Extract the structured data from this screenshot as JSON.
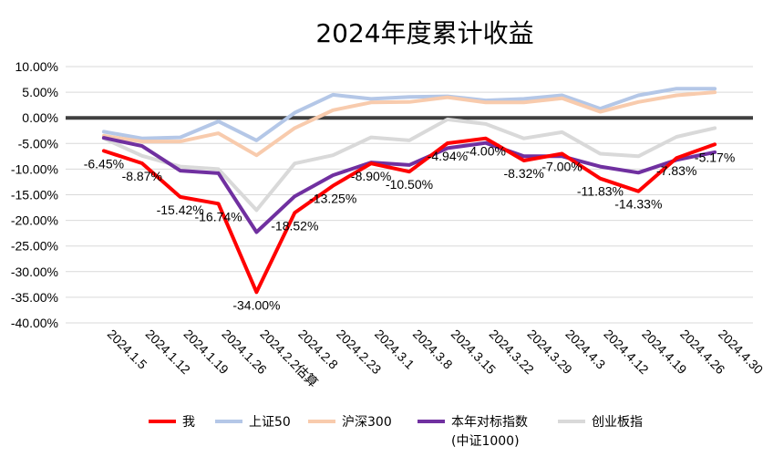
{
  "chart_data": {
    "type": "line",
    "title": "2024年度累计收益",
    "xlabel": "",
    "ylabel": "",
    "ylim": [
      -0.4,
      0.1
    ],
    "ytick_step": 0.05,
    "grid": true,
    "legend_position": "bottom",
    "yticks": [
      "10.00%",
      "5.00%",
      "0.00%",
      "-5.00%",
      "-10.00%",
      "-15.00%",
      "-20.00%",
      "-25.00%",
      "-30.00%",
      "-35.00%",
      "-40.00%"
    ],
    "categories": [
      "2024.1.5",
      "2024.1.12",
      "2024.1.19",
      "2024.1.26",
      "2024.2.2估算",
      "2024.2.8",
      "2024.2.23",
      "2024.3.1",
      "2024.3.8",
      "2024.3.15",
      "2024.3.22",
      "2024.3.29",
      "2024.4.3",
      "2024.4.12",
      "2024.4.19",
      "2024.4.26",
      "2024.4.30"
    ],
    "series": [
      {
        "name": "上证50",
        "color": "#b4c7e7",
        "width": 4,
        "values": [
          -0.027,
          -0.04,
          -0.038,
          -0.007,
          -0.044,
          0.01,
          0.045,
          0.037,
          0.041,
          0.042,
          0.034,
          0.037,
          0.044,
          0.018,
          0.044,
          0.057,
          0.057
        ]
      },
      {
        "name": "沪深300",
        "color": "#f8cbad",
        "width": 4,
        "values": [
          -0.035,
          -0.046,
          -0.046,
          -0.03,
          -0.073,
          -0.02,
          0.015,
          0.03,
          0.031,
          0.04,
          0.03,
          0.03,
          0.038,
          0.012,
          0.031,
          0.044,
          0.05
        ]
      },
      {
        "name": "创业板指",
        "color": "#d9d9d9",
        "width": 4,
        "values": [
          -0.04,
          -0.074,
          -0.095,
          -0.1,
          -0.18,
          -0.089,
          -0.073,
          -0.038,
          -0.044,
          -0.003,
          -0.012,
          -0.04,
          -0.028,
          -0.07,
          -0.075,
          -0.037,
          -0.02
        ]
      },
      {
        "name": "本年对标指数\n(中证1000)",
        "color": "#7030a0",
        "width": 4,
        "values": [
          -0.039,
          -0.055,
          -0.103,
          -0.108,
          -0.223,
          -0.153,
          -0.112,
          -0.087,
          -0.092,
          -0.059,
          -0.049,
          -0.075,
          -0.075,
          -0.095,
          -0.107,
          -0.082,
          -0.067
        ]
      },
      {
        "name": "我",
        "color": "#ff0000",
        "width": 4,
        "values": [
          -0.0645,
          -0.0887,
          -0.1542,
          -0.1674,
          -0.34,
          -0.1852,
          -0.1325,
          -0.089,
          -0.105,
          -0.0494,
          -0.04,
          -0.0832,
          -0.07,
          -0.1183,
          -0.1433,
          -0.0783,
          -0.0517
        ]
      }
    ],
    "data_labels": [
      {
        "category_index": 0,
        "text": "-6.45%"
      },
      {
        "category_index": 1,
        "text": "-8.87%"
      },
      {
        "category_index": 2,
        "text": "-15.42%"
      },
      {
        "category_index": 3,
        "text": "-16.74%"
      },
      {
        "category_index": 4,
        "text": "-34.00%"
      },
      {
        "category_index": 5,
        "text": "-18.52%"
      },
      {
        "category_index": 6,
        "text": "-13.25%"
      },
      {
        "category_index": 7,
        "text": "-8.90%"
      },
      {
        "category_index": 8,
        "text": "-10.50%"
      },
      {
        "category_index": 9,
        "text": "-4.94%"
      },
      {
        "category_index": 10,
        "text": "-4.00%"
      },
      {
        "category_index": 11,
        "text": "-8.32%"
      },
      {
        "category_index": 12,
        "text": "-7.00%"
      },
      {
        "category_index": 13,
        "text": "-11.83%"
      },
      {
        "category_index": 14,
        "text": "-14.33%"
      },
      {
        "category_index": 15,
        "text": "-7.83%"
      },
      {
        "category_index": 16,
        "text": "-5.17%"
      }
    ],
    "legend": [
      {
        "name": "我",
        "color": "#ff0000"
      },
      {
        "name": "上证50",
        "color": "#b4c7e7"
      },
      {
        "name": "沪深300",
        "color": "#f8cbad"
      },
      {
        "name": "本年对标指数",
        "name_line2": "(中证1000)",
        "color": "#7030a0"
      },
      {
        "name": "创业板指",
        "color": "#d9d9d9"
      }
    ]
  }
}
